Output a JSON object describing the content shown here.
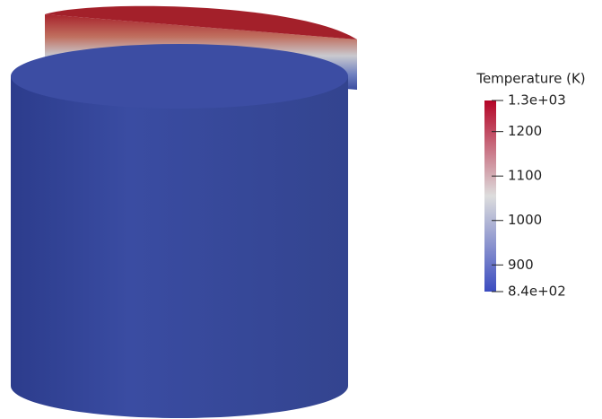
{
  "colorbar": {
    "title": "Temperature (K)",
    "range": [
      840,
      1270
    ],
    "ticks": [
      {
        "value": 1270,
        "label": "1.3e+03"
      },
      1200,
      1100,
      1000,
      900,
      {
        "value": 840,
        "label": "8.4e+02"
      }
    ],
    "colors": [
      "#3b4cc0",
      "#dddddd",
      "#b40426"
    ]
  }
}
